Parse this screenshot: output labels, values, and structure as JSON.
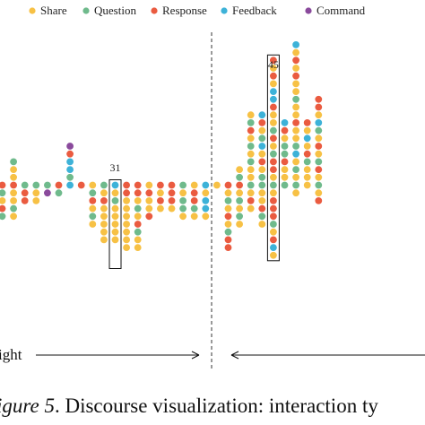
{
  "legend": [
    {
      "key": "S",
      "label": "Share",
      "color": "#f7c145"
    },
    {
      "key": "Q",
      "label": "Question",
      "color": "#6fba8c"
    },
    {
      "key": "R",
      "label": "Response",
      "color": "#ea5b40"
    },
    {
      "key": "F",
      "label": "Feedback",
      "color": "#3db2d8"
    },
    {
      "key": "C",
      "label": "Command",
      "color": "#8a4a9c"
    }
  ],
  "chart_data": {
    "type": "scatter",
    "title": "",
    "annotations": [
      "31",
      "45"
    ],
    "x_range": [
      0,
      28
    ],
    "columns": [
      {
        "x": 0,
        "above": "",
        "below": "RQSRQ"
      },
      {
        "x": 1,
        "above": "SSQ",
        "below": "RSSQS"
      },
      {
        "x": 2,
        "above": "",
        "below": "QRR"
      },
      {
        "x": 3,
        "above": "",
        "below": "QSS"
      },
      {
        "x": 4,
        "above": "",
        "below": "QC"
      },
      {
        "x": 5,
        "above": "",
        "below": "RQ"
      },
      {
        "x": 6,
        "above": "QFFRC",
        "below": "F"
      },
      {
        "x": 7,
        "above": "",
        "below": "R"
      },
      {
        "x": 8,
        "above": "",
        "below": "SQRSQS"
      },
      {
        "x": 9,
        "above": "",
        "below": "QSRSSSSS"
      },
      {
        "x": 10,
        "above": "",
        "below": "FSQSSSSS"
      },
      {
        "x": 11,
        "above": "",
        "below": "RRSSSSSSS"
      },
      {
        "x": 12,
        "above": "",
        "below": "RRSQSRQSS"
      },
      {
        "x": 13,
        "above": "",
        "below": "SRSSR"
      },
      {
        "x": 14,
        "above": "",
        "below": "RSRS"
      },
      {
        "x": 15,
        "above": "",
        "below": "RRRS"
      },
      {
        "x": 16,
        "above": "",
        "below": "QSQQS"
      },
      {
        "x": 17,
        "above": "",
        "below": "SRRQS"
      },
      {
        "x": 18,
        "above": "",
        "below": "FSFFS"
      },
      {
        "x": 19,
        "above": "",
        "below": "S"
      },
      {
        "x": 20,
        "above": "",
        "below": "RSQSRSQRR"
      },
      {
        "x": 21,
        "above": "QS",
        "below": "RSQSQS"
      },
      {
        "x": 22,
        "above": "SSQSQSRQS",
        "below": "QSRS"
      },
      {
        "x": 23,
        "above": "QSRSFQSRF",
        "below": "QSSRQS"
      },
      {
        "x": 24,
        "above": "SRRQSRQSSRFFSRSR",
        "below": "QSRRRQSRFS"
      },
      {
        "x": 25,
        "above": "SSRQQSRF",
        "below": "Q"
      },
      {
        "x": 26,
        "above": "SQSFQSSRSSQSSRSRSF",
        "below": "QS"
      },
      {
        "x": 27,
        "above": "SSQRSFSR",
        "below": "S"
      },
      {
        "x": 28,
        "above": "SRQSRSQFSRR",
        "below": "QSR"
      }
    ]
  },
  "axis": {
    "left_label": "ight",
    "arrow_left": "→",
    "arrow_right": "←"
  },
  "caption": {
    "figure": "igure 5",
    "text": ". Discourse visualization: interaction ty"
  }
}
